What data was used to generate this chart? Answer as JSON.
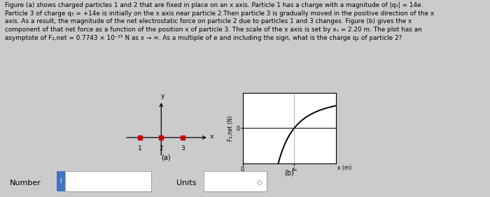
{
  "text_lines": [
    "Figure (a) shows charged particles 1 and 2 that are fixed in place on an x axis. Particle 1 has a charge with a magnitude of |q₁| = 14e.",
    "Particle 3 of charge q₃ = +14e is initially on the x axis near particle 2.Then particle 3 is gradually moved in the positive direction of the x",
    "axis. As a result, the magnitude of the net electrostatic force on particle 2 due to particles 1 and 3 changes. Figure (b) gives the x",
    "component of that net force as a function of the position x of particle 3. The scale of the x axis is set by xₛ = 2.20 m. The plot has an",
    "asymptote of F₂,net = 0.7743 × 10⁻²⁵ N as x → ∞. As a multiple of e and including the sign, what is the charge q₂ of particle 2?"
  ],
  "fig_a_particles": [
    1,
    2,
    3
  ],
  "fig_a_particle_color": "#cc0000",
  "fig_b_xlabel": "x (m)",
  "fig_b_ylabel": "F₂,net (N)",
  "fig_b_x0_label": "0",
  "fig_b_xs_label": "xₛ",
  "fig_b_y0_label": "0",
  "number_label": "Number",
  "units_label": "Units",
  "bg_color": "#cbcbcb",
  "text_color": "#000000",
  "input_box_color": "#4472c4",
  "label_a": "(a)",
  "label_b": "(b)"
}
